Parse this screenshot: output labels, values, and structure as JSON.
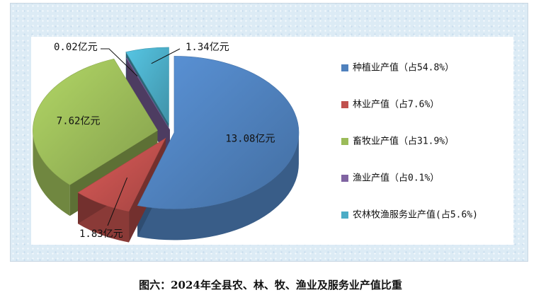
{
  "caption": "图六：2024年全县农、林、牧、渔业及服务业产值比重",
  "chart_data": {
    "type": "pie",
    "title": "",
    "unit": "亿元",
    "slices": [
      {
        "name": "种植业产值",
        "value": 13.08,
        "value_label": "13.08亿元",
        "legend": "种植业产值（占54.8%）",
        "color": "#4f81bd"
      },
      {
        "name": "林业产值",
        "value": 1.83,
        "value_label": "1.83亿元",
        "legend": "林业产值（占7.6%）",
        "color": "#c0504d"
      },
      {
        "name": "畜牧业产值",
        "value": 7.62,
        "value_label": "7.62亿元",
        "legend": "畜牧业产值（占31.9%）",
        "color": "#9bbb59"
      },
      {
        "name": "渔业产值",
        "value": 0.02,
        "value_label": "0.02亿元",
        "legend": "渔业产值（占0.1%）",
        "color": "#8064a2"
      },
      {
        "name": "农林牧渔服务业产值",
        "value": 1.34,
        "value_label": "1.34亿元",
        "legend": "农林牧渔服务业产值(占5.6%)",
        "color": "#4bacc6"
      }
    ],
    "legend_position": "right",
    "style": "3d-exploded"
  }
}
